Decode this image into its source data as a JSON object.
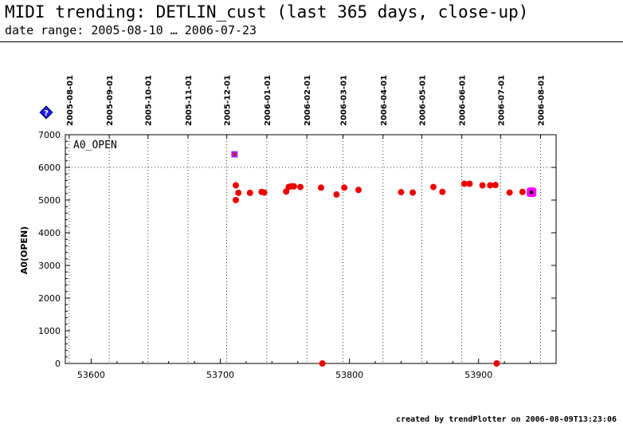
{
  "header": {
    "title": "MIDI trending: DETLIN_cust (last 365 days, close-up)",
    "subtitle": "date range: 2005-08-10 … 2006-07-23"
  },
  "footer": {
    "text": "created by trendPlotter on 2006-08-09T13:23:06"
  },
  "legend_marker": {
    "glyph": "?",
    "color": "#1a1aff"
  },
  "chart_data": {
    "type": "scatter",
    "title": "",
    "xlabel": "",
    "ylabel": "A0(OPEN)",
    "plot_label": "A0_OPEN",
    "xlim": [
      53580,
      53960
    ],
    "ylim": [
      0,
      7000
    ],
    "x_ticks": [
      53600,
      53700,
      53800,
      53900
    ],
    "y_ticks": [
      0,
      1000,
      2000,
      3000,
      4000,
      5000,
      6000,
      7000
    ],
    "hline": 6000,
    "date_ticks": [
      {
        "mjd": 53583,
        "label": "2005-08-01"
      },
      {
        "mjd": 53614,
        "label": "2005-09-01"
      },
      {
        "mjd": 53644,
        "label": "2005-10-01"
      },
      {
        "mjd": 53675,
        "label": "2005-11-01"
      },
      {
        "mjd": 53705,
        "label": "2005-12-01"
      },
      {
        "mjd": 53736,
        "label": "2006-01-01"
      },
      {
        "mjd": 53767,
        "label": "2006-02-01"
      },
      {
        "mjd": 53795,
        "label": "2006-03-01"
      },
      {
        "mjd": 53826,
        "label": "2006-04-01"
      },
      {
        "mjd": 53856,
        "label": "2006-05-01"
      },
      {
        "mjd": 53887,
        "label": "2006-06-01"
      },
      {
        "mjd": 53917,
        "label": "2006-07-01"
      },
      {
        "mjd": 53948,
        "label": "2006-08-01"
      }
    ],
    "series": [
      {
        "color": "#ee0000",
        "points": [
          [
            53712,
            5450
          ],
          [
            53712,
            5000
          ],
          [
            53714,
            5220
          ],
          [
            53723,
            5220
          ],
          [
            53732,
            5250
          ],
          [
            53734,
            5230
          ],
          [
            53751,
            5260
          ],
          [
            53753,
            5400
          ],
          [
            53755,
            5420
          ],
          [
            53757,
            5420
          ],
          [
            53762,
            5400
          ],
          [
            53778,
            5380
          ],
          [
            53779,
            0
          ],
          [
            53790,
            5170
          ],
          [
            53796,
            5380
          ],
          [
            53807,
            5310
          ],
          [
            53840,
            5240
          ],
          [
            53849,
            5230
          ],
          [
            53865,
            5400
          ],
          [
            53872,
            5250
          ],
          [
            53889,
            5500
          ],
          [
            53893,
            5500
          ],
          [
            53903,
            5450
          ],
          [
            53909,
            5450
          ],
          [
            53913,
            5460
          ],
          [
            53914,
            0
          ],
          [
            53924,
            5230
          ],
          [
            53934,
            5250
          ],
          [
            53941,
            5230
          ]
        ]
      }
    ],
    "special_points": [
      {
        "x": 53711,
        "y": 6400,
        "outer": "#9b30ff",
        "inner": "#ee0000",
        "size": "small"
      },
      {
        "x": 53941,
        "y": 5240,
        "outer": "#ff00ff",
        "inner": "#000000",
        "size": "large"
      }
    ]
  }
}
